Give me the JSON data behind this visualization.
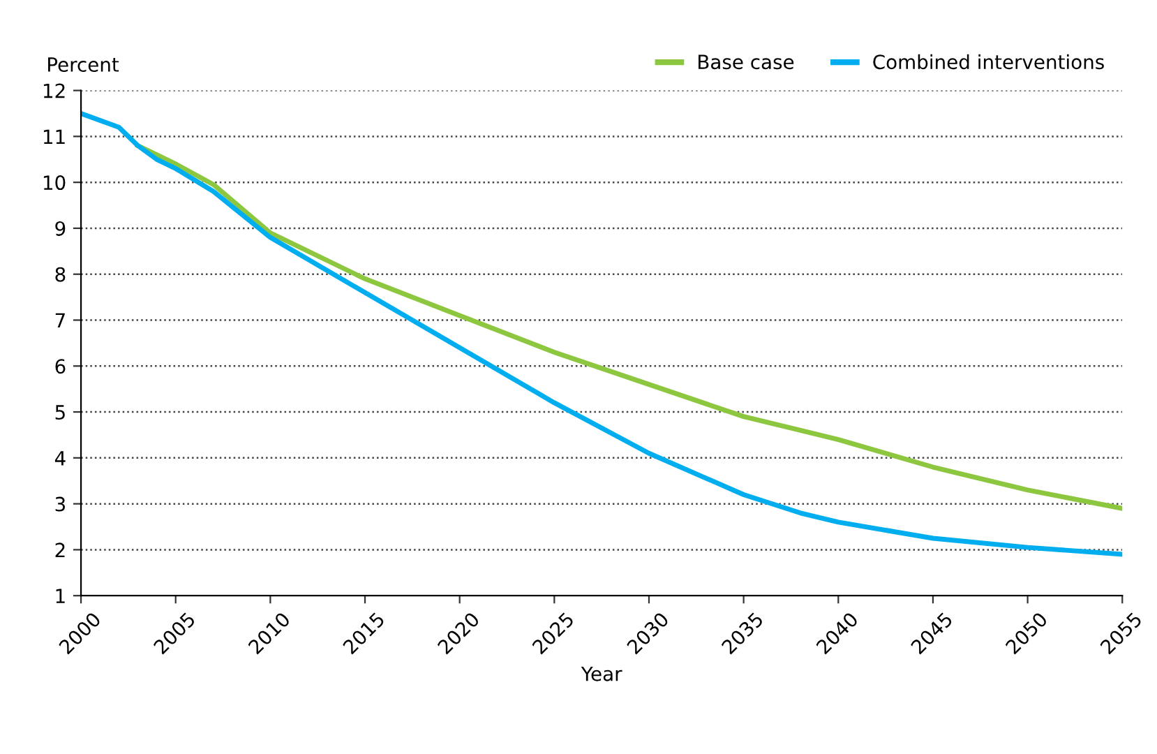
{
  "chart_data": {
    "type": "line",
    "ylabel": "Percent",
    "xlabel": "Year",
    "x": [
      2000,
      2002,
      2003,
      2004,
      2005,
      2007,
      2010,
      2015,
      2020,
      2025,
      2030,
      2035,
      2038,
      2040,
      2045,
      2050,
      2055
    ],
    "series": [
      {
        "name": "Base case",
        "color": "#8dc63f",
        "values": [
          null,
          null,
          10.8,
          10.6,
          10.4,
          9.95,
          8.9,
          7.9,
          7.1,
          6.3,
          5.6,
          4.9,
          4.6,
          4.4,
          3.8,
          3.3,
          2.9
        ]
      },
      {
        "name": "Combined interventions",
        "color": "#00aeef",
        "values": [
          11.5,
          11.2,
          10.8,
          10.5,
          10.3,
          9.8,
          8.8,
          7.6,
          6.4,
          5.2,
          4.1,
          3.2,
          2.8,
          2.6,
          2.25,
          2.05,
          1.9
        ]
      }
    ],
    "xlim": [
      2000,
      2055
    ],
    "xticks": [
      2000,
      2005,
      2010,
      2015,
      2020,
      2025,
      2030,
      2035,
      2040,
      2045,
      2050,
      2055
    ],
    "ylim": [
      1,
      12
    ],
    "yticks": [
      1,
      2,
      3,
      4,
      5,
      6,
      7,
      8,
      9,
      10,
      11,
      12
    ],
    "grid": "y",
    "legend": "top right",
    "marker": "none",
    "line_style": "solid"
  }
}
